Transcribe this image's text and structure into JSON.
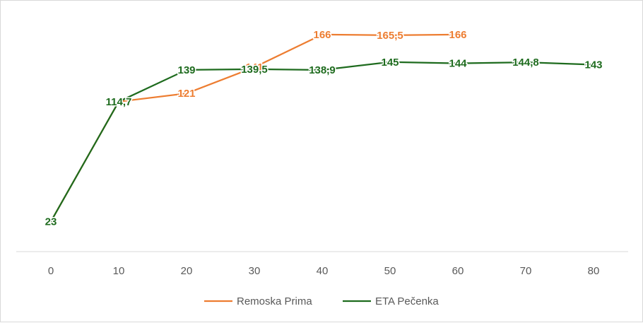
{
  "chart_data": {
    "type": "line",
    "title": "",
    "xlabel": "",
    "ylabel": "",
    "x": [
      0,
      10,
      20,
      30,
      40,
      50,
      60,
      70,
      80
    ],
    "xlim": [
      0,
      80
    ],
    "ylim": [
      0,
      180
    ],
    "grid": false,
    "legend_position": "bottom",
    "series": [
      {
        "name": "Remoska Prima",
        "color": "#ED7D31",
        "points": [
          [
            0,
            23
          ],
          [
            10,
            114.7
          ],
          [
            20,
            121
          ],
          [
            30,
            141
          ],
          [
            40,
            166
          ],
          [
            50,
            165.5
          ],
          [
            60,
            166
          ]
        ],
        "labels": [
          "23",
          "114,7",
          "121",
          "141",
          "166",
          "165,5",
          "166"
        ]
      },
      {
        "name": "ETA Pečenka",
        "color": "#1E6B1E",
        "points": [
          [
            0,
            23
          ],
          [
            10,
            114.7
          ],
          [
            20,
            139
          ],
          [
            30,
            139.5
          ],
          [
            40,
            138.9
          ],
          [
            50,
            145
          ],
          [
            60,
            144
          ],
          [
            70,
            144.8
          ],
          [
            80,
            143
          ]
        ],
        "labels": [
          "23",
          "114,7",
          "139",
          "139,5",
          "138,9",
          "145",
          "144",
          "144,8",
          "143"
        ]
      }
    ]
  }
}
